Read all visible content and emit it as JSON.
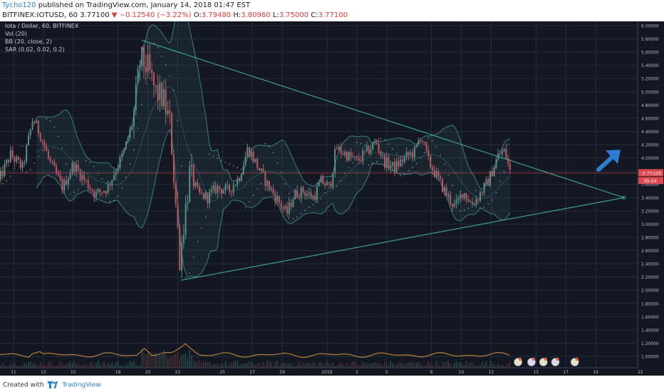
{
  "header": {
    "author": "Tycho120",
    "published": "published on TradingView.com, January 14, 2018 01:47 EST",
    "symbol": "BITFINEX:IOTUSD, 60",
    "last": "3.77100",
    "change": "−0.12540 (−3.22%)",
    "o_label": "O:",
    "o": "3.79480",
    "h_label": "H:",
    "h": "3.80960",
    "l_label": "L:",
    "l": "3.75000",
    "c_label": "C:",
    "c": "3.77100"
  },
  "legend": {
    "title": "Iota / Dollar, 60, BITFINEX",
    "vol": "Vol (20)",
    "bb": "BB (20, close, 2)",
    "sar": "SAR (0.02, 0.02, 0.2)"
  },
  "footer": {
    "created_with": "Created with",
    "brand": "TradingView"
  },
  "colors": {
    "background": "#131722",
    "grid": "#262b3a",
    "candle_up": "#5c8f88",
    "candle_down": "#c0565e",
    "band": "#3f8f92",
    "sar": "#9fb6c8",
    "trendline": "#3fa9a0",
    "price_line": "#e0474f",
    "arrow": "#2f7dd1",
    "volume_line": "#d4913d"
  },
  "chart_data": {
    "type": "candlestick",
    "x_ticks": [
      "11",
      "13",
      "15",
      "18",
      "20",
      "22",
      "25",
      "27",
      "29",
      "2018",
      "3",
      "5",
      "8",
      "10",
      "12",
      "15",
      "17",
      "19",
      "22"
    ],
    "y_ticks": [
      "6.00000",
      "5.80000",
      "5.60000",
      "5.40000",
      "5.20000",
      "5.00000",
      "4.80000",
      "4.60000",
      "4.40000",
      "4.20000",
      "4.00000",
      "3.80000",
      "3.60000",
      "3.40000",
      "3.20000",
      "3.00000",
      "2.80000",
      "2.60000",
      "2.40000",
      "2.20000",
      "2.00000",
      "1.80000",
      "1.60000",
      "1.40000",
      "1.20000",
      "1.00000"
    ],
    "ylim": [
      0.82,
      6.1
    ],
    "last_price": "3.77100",
    "countdown": "39:24",
    "close_path": [
      {
        "day": 10.0,
        "price": 3.65
      },
      {
        "day": 10.8,
        "price": 4.05
      },
      {
        "day": 11.6,
        "price": 3.85
      },
      {
        "day": 12.3,
        "price": 4.6
      },
      {
        "day": 12.8,
        "price": 4.35
      },
      {
        "day": 13.4,
        "price": 3.95
      },
      {
        "day": 14.3,
        "price": 3.55
      },
      {
        "day": 15.0,
        "price": 3.9
      },
      {
        "day": 15.8,
        "price": 3.65
      },
      {
        "day": 16.5,
        "price": 3.45
      },
      {
        "day": 17.3,
        "price": 3.55
      },
      {
        "day": 17.9,
        "price": 3.85
      },
      {
        "day": 18.4,
        "price": 4.1
      },
      {
        "day": 19.0,
        "price": 4.55
      },
      {
        "day": 19.5,
        "price": 5.5
      },
      {
        "day": 20.0,
        "price": 5.35
      },
      {
        "day": 20.5,
        "price": 5.0
      },
      {
        "day": 21.0,
        "price": 4.9
      },
      {
        "day": 21.5,
        "price": 4.5
      },
      {
        "day": 21.9,
        "price": 3.2
      },
      {
        "day": 22.15,
        "price": 2.45
      },
      {
        "day": 22.4,
        "price": 3.0
      },
      {
        "day": 22.8,
        "price": 3.75
      },
      {
        "day": 23.4,
        "price": 3.45
      },
      {
        "day": 24.0,
        "price": 3.4
      },
      {
        "day": 24.6,
        "price": 3.55
      },
      {
        "day": 25.4,
        "price": 3.5
      },
      {
        "day": 26.1,
        "price": 3.7
      },
      {
        "day": 26.7,
        "price": 4.15
      },
      {
        "day": 27.4,
        "price": 3.85
      },
      {
        "day": 28.0,
        "price": 3.6
      },
      {
        "day": 28.6,
        "price": 3.4
      },
      {
        "day": 29.3,
        "price": 3.15
      },
      {
        "day": 29.8,
        "price": 3.45
      },
      {
        "day": 30.4,
        "price": 3.5
      },
      {
        "day": 31.1,
        "price": 3.4
      },
      {
        "day": 31.6,
        "price": 3.65
      },
      {
        "day": 32.2,
        "price": 3.55
      },
      {
        "day": 32.6,
        "price": 4.15
      },
      {
        "day": 33.3,
        "price": 4.05
      },
      {
        "day": 34.0,
        "price": 3.95
      },
      {
        "day": 34.7,
        "price": 4.1
      },
      {
        "day": 35.3,
        "price": 4.25
      },
      {
        "day": 35.8,
        "price": 3.95
      },
      {
        "day": 36.5,
        "price": 3.85
      },
      {
        "day": 37.2,
        "price": 4.0
      },
      {
        "day": 37.9,
        "price": 4.1
      },
      {
        "day": 38.3,
        "price": 4.35
      },
      {
        "day": 38.8,
        "price": 3.95
      },
      {
        "day": 39.4,
        "price": 3.7
      },
      {
        "day": 40.0,
        "price": 3.45
      },
      {
        "day": 40.6,
        "price": 3.25
      },
      {
        "day": 41.1,
        "price": 3.5
      },
      {
        "day": 41.7,
        "price": 3.3
      },
      {
        "day": 42.1,
        "price": 3.4
      },
      {
        "day": 42.8,
        "price": 3.65
      },
      {
        "day": 43.5,
        "price": 4.05
      },
      {
        "day": 43.9,
        "price": 4.1
      },
      {
        "day": 44.3,
        "price": 3.77
      }
    ],
    "trendlines": [
      {
        "name": "upper",
        "from": {
          "day": 19.6,
          "price": 5.78
        },
        "to": {
          "day": 51.9,
          "price": 3.4
        }
      },
      {
        "name": "lower",
        "from": {
          "day": 22.2,
          "price": 2.15
        },
        "to": {
          "day": 51.9,
          "price": 3.4
        }
      }
    ],
    "volume": "volume histogram with 20-period average line at bottom",
    "grid": true
  }
}
